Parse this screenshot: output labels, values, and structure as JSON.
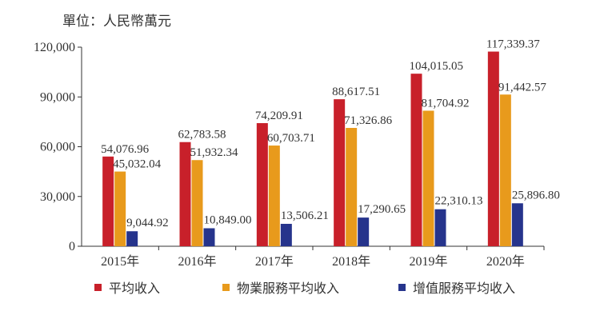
{
  "unit_label": "單位：人民幣萬元",
  "chart_data": {
    "type": "bar",
    "categories": [
      "2015年",
      "2016年",
      "2017年",
      "2018年",
      "2019年",
      "2020年"
    ],
    "series": [
      {
        "name": "平均收入",
        "color": "#c8202a",
        "values": [
          54076.96,
          62783.58,
          74209.91,
          88617.51,
          104015.05,
          117339.37
        ],
        "labels": [
          "54,076.96",
          "62,783.58",
          "74,209.91",
          "88,617.51",
          "104,015.05",
          "117,339.37"
        ]
      },
      {
        "name": "物業服務平均收入",
        "color": "#e89a1c",
        "values": [
          45032.04,
          51932.34,
          60703.71,
          71326.86,
          81704.92,
          91442.57
        ],
        "labels": [
          "45,032.04",
          "51,932.34",
          "60,703.71",
          "71,326.86",
          "81,704.92",
          "91,442.57"
        ]
      },
      {
        "name": "增值服務平均收入",
        "color": "#26348c",
        "values": [
          9044.92,
          10849.0,
          13506.21,
          17290.65,
          22310.13,
          25896.8
        ],
        "labels": [
          "9,044.92",
          "10,849.00",
          "13,506.21",
          "17,290.65",
          "22,310.13",
          "25,896.80"
        ]
      }
    ],
    "ylim": [
      0,
      120000
    ],
    "yticks": [
      0,
      30000,
      60000,
      90000,
      120000
    ],
    "ytick_labels": [
      "0",
      "30,000",
      "60,000",
      "90,000",
      "120,000"
    ],
    "grid": false,
    "legend": "bottom",
    "xlabel": "",
    "ylabel": ""
  }
}
